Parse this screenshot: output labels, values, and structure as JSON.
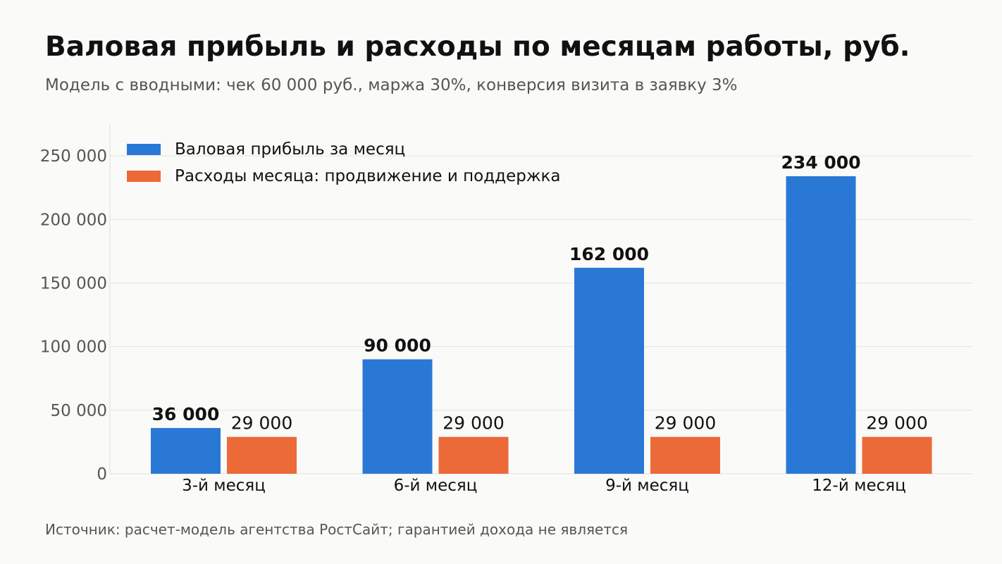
{
  "title": "Валовая прибыль и расходы по месяцам работы, руб.",
  "subtitle": "Модель с вводными: чек 60 000 руб., маржа 30%, конверсия визита в заявку 3%",
  "source": "Источник: расчет-модель агентства РостСайт; гарантией дохода не является",
  "chart_data": {
    "type": "bar",
    "categories": [
      "3-й месяц",
      "6-й месяц",
      "9-й месяц",
      "12-й месяц"
    ],
    "series": [
      {
        "name": "Валовая прибыль за месяц",
        "values": [
          36000,
          90000,
          162000,
          234000
        ],
        "color": "#2a78d6",
        "labels": [
          "36 000",
          "90 000",
          "162 000",
          "234 000"
        ],
        "label_weight": "bold"
      },
      {
        "name": "Расходы месяца: продвижение и поддержка",
        "values": [
          29000,
          29000,
          29000,
          29000
        ],
        "color": "#eb6a38",
        "labels": [
          "29 000",
          "29 000",
          "29 000",
          "29 000"
        ],
        "label_weight": "normal"
      }
    ],
    "y_ticks": [
      0,
      50000,
      100000,
      150000,
      200000,
      250000
    ],
    "y_tick_labels": [
      "0",
      "50 000",
      "100 000",
      "150 000",
      "200 000",
      "250 000"
    ],
    "ylim": [
      0,
      275000
    ],
    "grid": true,
    "legend_position": "top-left"
  }
}
